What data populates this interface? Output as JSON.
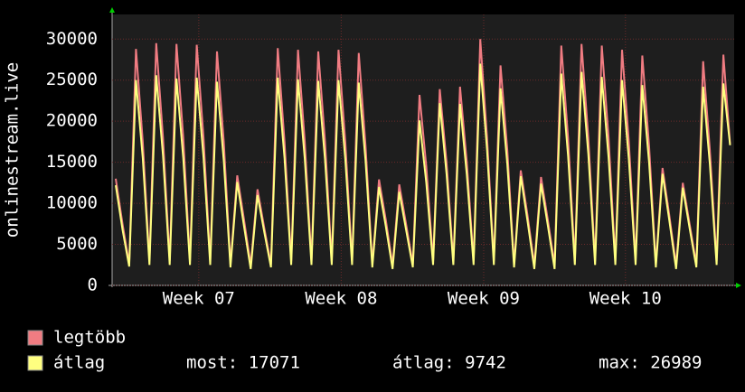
{
  "chart_data": {
    "type": "line",
    "y_label": "onlinestream.live",
    "xlim": [
      -0.535,
      91.6
    ],
    "xticks": [
      {
        "value": 12.3,
        "label": "Week 07"
      },
      {
        "value": 33.4,
        "label": "Week 08"
      },
      {
        "value": 54.5,
        "label": "Week 09"
      },
      {
        "value": 75.5,
        "label": "Week 10"
      }
    ],
    "ylim": [
      0,
      33000
    ],
    "yticks": [
      0,
      5000,
      10000,
      15000,
      20000,
      25000,
      30000
    ],
    "grid": true,
    "series": [
      {
        "name": "legtöbb",
        "color": "#f07c82",
        "values": [
          13000,
          7500,
          2600,
          28800,
          17500,
          3000,
          29500,
          18000,
          3000,
          29400,
          18000,
          3000,
          29300,
          18000,
          3000,
          28500,
          17500,
          2600,
          13400,
          8000,
          2500,
          11700,
          7000,
          2600,
          28900,
          17500,
          3000,
          28700,
          17500,
          3000,
          28500,
          17500,
          3000,
          28700,
          17500,
          3000,
          28300,
          17000,
          2600,
          12900,
          8000,
          2500,
          12300,
          7500,
          2600,
          23200,
          14500,
          3000,
          23900,
          15000,
          3000,
          24200,
          15000,
          3000,
          30000,
          18000,
          3000,
          26800,
          16500,
          2600,
          14000,
          8500,
          2500,
          13200,
          8000,
          2500,
          29200,
          18000,
          3000,
          29400,
          18000,
          3000,
          29200,
          18000,
          3000,
          28700,
          17500,
          3000,
          28000,
          17000,
          2600,
          14300,
          8500,
          2500,
          12500,
          7500,
          2600,
          27300,
          16500,
          3000,
          28100,
          17200
        ]
      },
      {
        "name": "átlag",
        "color": "#ffff80",
        "values": [
          12200,
          6800,
          2300,
          25000,
          15500,
          2500,
          25600,
          15800,
          2500,
          25200,
          15500,
          2500,
          25300,
          15600,
          2500,
          24800,
          15200,
          2200,
          12600,
          7200,
          2000,
          11000,
          6500,
          2200,
          25300,
          15500,
          2500,
          25100,
          15400,
          2500,
          24900,
          15300,
          2500,
          25000,
          15400,
          2500,
          24700,
          15200,
          2200,
          12000,
          7200,
          2000,
          11400,
          6800,
          2200,
          20100,
          12500,
          2500,
          22200,
          13600,
          2500,
          22100,
          13500,
          2500,
          27000,
          16500,
          2500,
          24000,
          14800,
          2200,
          13300,
          7800,
          2000,
          12400,
          7300,
          2000,
          25800,
          15800,
          2500,
          26000,
          16000,
          2500,
          25400,
          15600,
          2500,
          25000,
          15400,
          2500,
          24400,
          15000,
          2200,
          13600,
          7900,
          2000,
          11900,
          7000,
          2200,
          24200,
          14800,
          2500,
          24600,
          17071
        ]
      }
    ],
    "stats": [
      {
        "label": "most:",
        "value": 17071
      },
      {
        "label": "átlag:",
        "value": 9742
      },
      {
        "label": "max:",
        "value": 26989
      }
    ]
  }
}
